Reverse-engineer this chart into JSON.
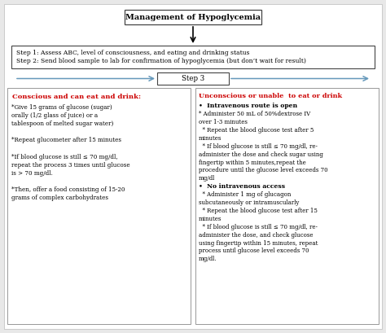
{
  "title": "Management of Hypoglycemia",
  "step12_line1": "Step 1: Assess ABC, level of consciousness, and eating and drinking status",
  "step12_line2": "Step 2: Send blood sample to lab for confirmation of hypoglycemia (but don’t wait for result)",
  "step3_label": "Step 3",
  "left_header": "Conscious and can eat and drink:",
  "left_body": "*Give 15 grams of glucose (sugar)\norally (1/2 glass of juice) or a\ntablespoon of melted sugar water)\n\n*Repeat glucometer after 15 minutes\n\n*If blood glucose is still ≤ 70 mg/dl,\nrepeat the process 3 times until glucose\nis > 70 mg/dl.\n\n*Then, offer a food consisting of 15-20\ngrams of complex carbohydrates",
  "right_header": "Unconscious or unable  to eat or drink",
  "right_b1h": "Intravenous route is open",
  "right_b1": "* Administer 50 mL of 50%dextrose IV\nover 1-3 minutes\n  * Repeat the blood glucose test after 5\nminutes\n  * If blood glucose is still ≤ 70 mg/dl, re-\nadminister the dose and check sugar using\nfingertip within 5 minutes,repeat the\nprocedure until the glucose level exceeds 70\nmg/dl",
  "right_b2h": "No intravenous access",
  "right_b2": "  * Administer 1 mg of glucagon\nsubcutaneously or intramuscularly\n  * Repeat the blood glucose test after 15\nminutes\n  * If blood glucose is still ≤ 70 mg/dl, re-\nadminister the dose, and check glucose\nusing fingertip within 15 minutes, repeat\nprocess until glucose level exceeds 70\nmg/dl.",
  "bg_color": "#e8e8e8",
  "panel_color": "#ffffff",
  "red_color": "#cc0000",
  "arrow_color": "#6699bb"
}
